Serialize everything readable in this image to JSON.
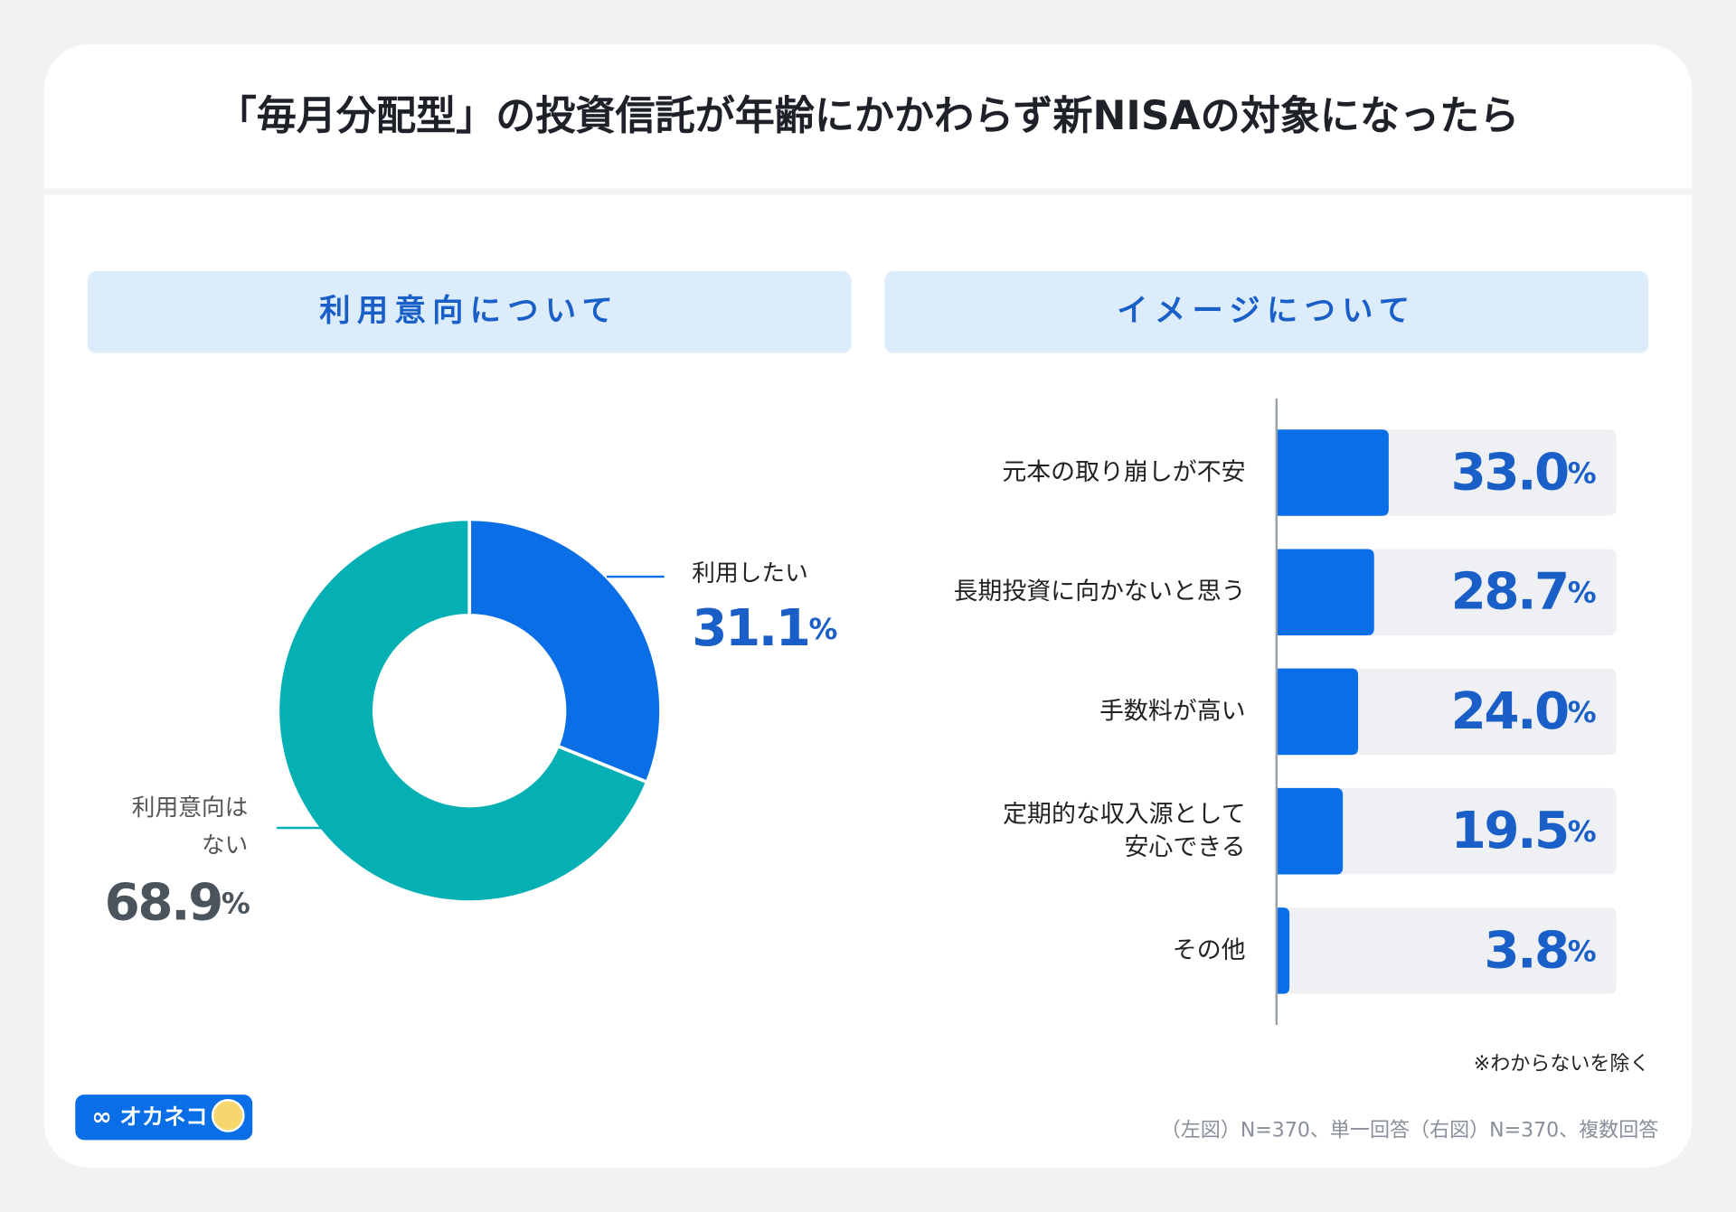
{
  "title": "「毎月分配型」の投資信託が年齢にかかわらず新NISAの対象になったら",
  "chart_data": [
    {
      "type": "pie",
      "title": "利用意向について",
      "categories": [
        "利用したい",
        "利用意向は\nない"
      ],
      "values": [
        31.1,
        68.9
      ],
      "value_labels": [
        "31.1%",
        "68.9%"
      ],
      "colors": [
        "#0a6fe6",
        "#05b0b4"
      ]
    },
    {
      "type": "bar",
      "orientation": "horizontal",
      "title": "イメージについて",
      "categories": [
        "元本の取り崩しが不安",
        "長期投資に向かないと思う",
        "手数料が高い",
        "定期的な収入源として\n安心できる",
        "その他"
      ],
      "values": [
        33.0,
        28.7,
        24.0,
        19.5,
        3.8
      ],
      "value_labels": [
        "33.0%",
        "28.7%",
        "24.0%",
        "19.5%",
        "3.8%"
      ],
      "color": "#0a6fe6",
      "xlim": [
        0,
        100
      ]
    }
  ],
  "note": "※わからないを除く",
  "source": "（左図）N=370、単一回答（右図）N=370、複数回答",
  "logo": "オカネコ"
}
